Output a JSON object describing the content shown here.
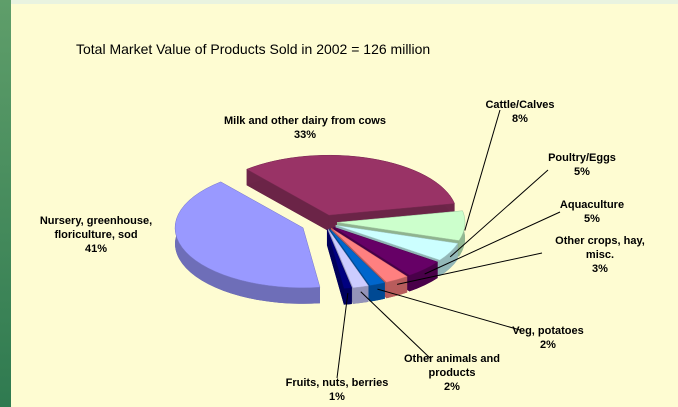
{
  "chart_data": {
    "type": "pie3d",
    "title": "Total Market Value of Products Sold in 2002 = 126 million",
    "categories": [
      "Milk and other dairy from cows",
      "Cattle/Calves",
      "Poultry/Eggs",
      "Aquaculture",
      "Other crops, hay, misc.",
      "Veg,  potatoes",
      "Other animals and products",
      "Fruits, nuts, berries",
      "Nursery, greenhouse, floriculture, sod"
    ],
    "values": [
      33,
      8,
      5,
      5,
      3,
      2,
      2,
      1,
      41
    ],
    "value_labels": [
      "33%",
      "8%",
      "5%",
      "5%",
      "3%",
      "2%",
      "2%",
      "1%",
      "41%"
    ],
    "colors": [
      "#993366",
      "#ccffcc",
      "#ccffff",
      "#660066",
      "#ff8080",
      "#0066cc",
      "#ccccff",
      "#000080",
      "#9999ff"
    ]
  }
}
